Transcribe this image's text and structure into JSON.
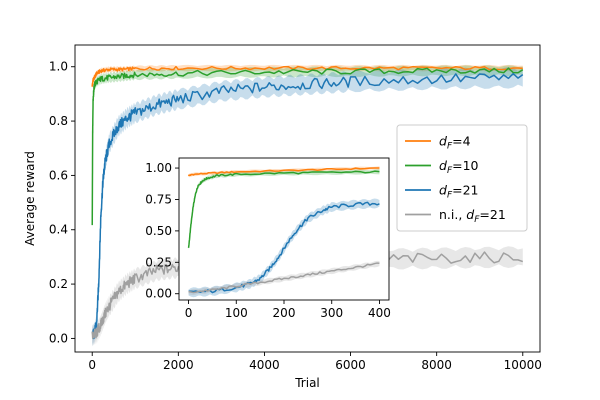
{
  "chart_data": [
    {
      "id": "main",
      "type": "line",
      "title": "",
      "xlabel": "Trial",
      "ylabel": "Average reward",
      "xlim": [
        -400,
        10400
      ],
      "ylim": [
        -0.05,
        1.08
      ],
      "xticks": [
        0,
        2000,
        4000,
        6000,
        8000,
        10000
      ],
      "xtick_labels": [
        "0",
        "2000",
        "4000",
        "6000",
        "8000",
        "10000"
      ],
      "yticks": [
        0.0,
        0.2,
        0.4,
        0.6,
        0.8,
        1.0
      ],
      "ytick_labels": [
        "0.0",
        "0.2",
        "0.4",
        "0.6",
        "0.8",
        "1.0"
      ],
      "legend_position": "center-right",
      "series": [
        {
          "key": "dF4",
          "legend_main": "d",
          "legend_sub": "F",
          "legend_rest": "=4",
          "color": "#ff7f0e",
          "band": 0.012,
          "x": [
            0,
            20,
            50,
            100,
            200,
            400,
            700,
            1000,
            2000,
            4000,
            6000,
            8000,
            10000
          ],
          "y": [
            0.93,
            0.95,
            0.96,
            0.975,
            0.985,
            0.99,
            0.99,
            0.993,
            0.995,
            0.995,
            0.995,
            0.995,
            0.995
          ]
        },
        {
          "key": "dF10",
          "legend_main": "d",
          "legend_sub": "F",
          "legend_rest": "=10",
          "color": "#2ca02c",
          "band": 0.02,
          "x": [
            0,
            10,
            20,
            40,
            60,
            100,
            200,
            400,
            700,
            1000,
            2000,
            4000,
            6000,
            8000,
            10000
          ],
          "y": [
            0.41,
            0.75,
            0.88,
            0.92,
            0.935,
            0.945,
            0.955,
            0.96,
            0.965,
            0.97,
            0.975,
            0.98,
            0.982,
            0.985,
            0.985
          ]
        },
        {
          "key": "dF21",
          "legend_main": "d",
          "legend_sub": "F",
          "legend_rest": "=21",
          "color": "#1f77b4",
          "band": 0.04,
          "x": [
            0,
            50,
            100,
            150,
            200,
            250,
            300,
            400,
            600,
            800,
            1000,
            1500,
            2000,
            3000,
            4000,
            5000,
            6000,
            8000,
            10000
          ],
          "y": [
            0.01,
            0.02,
            0.05,
            0.2,
            0.45,
            0.58,
            0.65,
            0.72,
            0.78,
            0.81,
            0.83,
            0.86,
            0.88,
            0.91,
            0.925,
            0.935,
            0.945,
            0.955,
            0.96
          ]
        },
        {
          "key": "ni21",
          "legend_main": "n.i., d",
          "legend_sub": "F",
          "legend_rest": "=21",
          "color": "#a0a0a0",
          "band": 0.04,
          "x": [
            0,
            100,
            200,
            300,
            400,
            600,
            800,
            1000,
            1500,
            2000,
            3000,
            4000,
            6000,
            8000,
            10000
          ],
          "y": [
            0.01,
            0.02,
            0.05,
            0.09,
            0.12,
            0.17,
            0.2,
            0.22,
            0.25,
            0.26,
            0.28,
            0.285,
            0.29,
            0.295,
            0.3
          ]
        }
      ]
    },
    {
      "id": "inset",
      "type": "line",
      "title": "",
      "xlabel": "",
      "ylabel": "",
      "xlim": [
        -20,
        420
      ],
      "ylim": [
        -0.05,
        1.08
      ],
      "xticks": [
        0,
        100,
        200,
        300,
        400
      ],
      "xtick_labels": [
        "0",
        "100",
        "200",
        "300",
        "400"
      ],
      "yticks": [
        0.0,
        0.25,
        0.5,
        0.75,
        1.0
      ],
      "ytick_labels": [
        "0.00",
        "0.25",
        "0.50",
        "0.75",
        "1.00"
      ],
      "series": [
        {
          "key": "dF4",
          "color": "#ff7f0e",
          "band": 0.015,
          "x": [
            0,
            10,
            50,
            100,
            200,
            300,
            400
          ],
          "y": [
            0.94,
            0.95,
            0.96,
            0.97,
            0.98,
            0.99,
            1.0
          ]
        },
        {
          "key": "dF10",
          "color": "#2ca02c",
          "band": 0.02,
          "x": [
            0,
            5,
            10,
            15,
            20,
            30,
            40,
            60,
            100,
            200,
            300,
            400
          ],
          "y": [
            0.36,
            0.55,
            0.7,
            0.8,
            0.86,
            0.9,
            0.92,
            0.94,
            0.95,
            0.96,
            0.965,
            0.97
          ]
        },
        {
          "key": "dF21",
          "color": "#1f77b4",
          "band": 0.04,
          "x": [
            0,
            50,
            100,
            130,
            150,
            170,
            190,
            210,
            230,
            250,
            280,
            300,
            350,
            400
          ],
          "y": [
            0.01,
            0.02,
            0.05,
            0.08,
            0.12,
            0.2,
            0.3,
            0.42,
            0.52,
            0.6,
            0.66,
            0.69,
            0.71,
            0.72
          ]
        },
        {
          "key": "ni21",
          "color": "#a0a0a0",
          "band": 0.025,
          "x": [
            0,
            50,
            100,
            150,
            200,
            250,
            300,
            350,
            400
          ],
          "y": [
            0.01,
            0.03,
            0.06,
            0.09,
            0.12,
            0.15,
            0.18,
            0.21,
            0.24
          ]
        }
      ]
    }
  ]
}
